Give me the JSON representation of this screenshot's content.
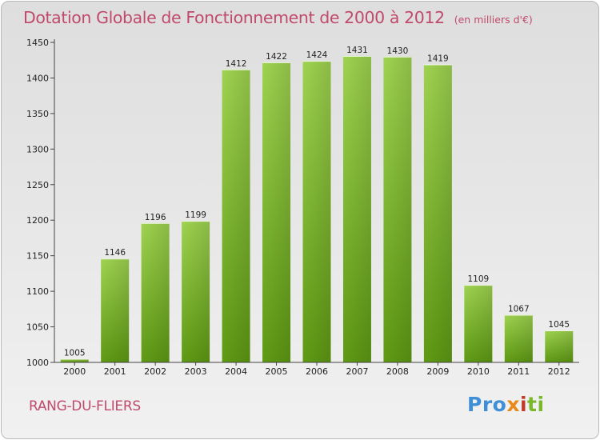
{
  "header": {
    "title": "Dotation Globale de Fonctionnement de 2000 à 2012",
    "subtitle": "(en milliers d'€)"
  },
  "footer": {
    "commune": "RANG-DU-FLIERS",
    "brand": {
      "p1": "Pro",
      "p2": "x",
      "p3": "i",
      "p4": "ti"
    }
  },
  "colors": {
    "bar_top": "#9fd350",
    "bar_bottom": "#5e9a13",
    "title": "#c04a6c",
    "axis": "#444444"
  },
  "chart_data": {
    "type": "bar",
    "title": "Dotation Globale de Fonctionnement de 2000 à 2012",
    "subtitle": "(en milliers d'€)",
    "categories": [
      "2000",
      "2001",
      "2002",
      "2003",
      "2004",
      "2005",
      "2006",
      "2007",
      "2008",
      "2009",
      "2010",
      "2011",
      "2012"
    ],
    "values": [
      1005,
      1146,
      1196,
      1199,
      1412,
      1422,
      1424,
      1431,
      1430,
      1419,
      1109,
      1067,
      1045
    ],
    "ylim": [
      1000,
      1450
    ],
    "yticks": [
      1000,
      1050,
      1100,
      1150,
      1200,
      1250,
      1300,
      1350,
      1400,
      1450
    ],
    "grid": false,
    "xlabel": "",
    "ylabel": ""
  }
}
